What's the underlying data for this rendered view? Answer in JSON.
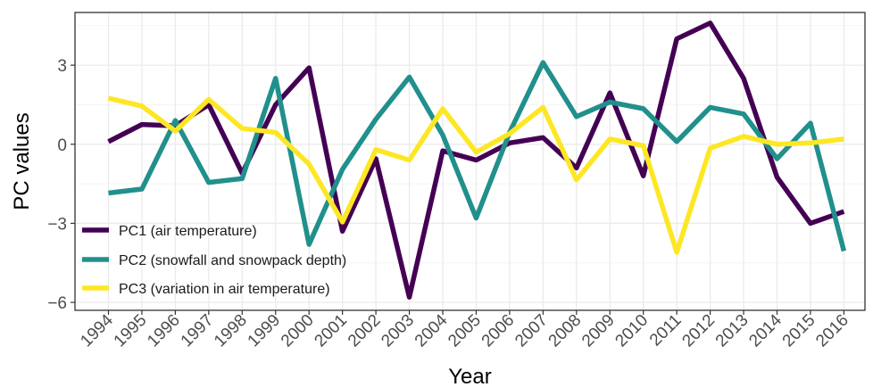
{
  "chart_data": {
    "type": "line",
    "xlabel": "Year",
    "ylabel": "PC values",
    "ylim": [
      -6.3,
      5.0
    ],
    "y_ticks": [
      -6,
      -3,
      0,
      3
    ],
    "y_tick_labels": [
      "−6",
      "−3",
      "0",
      "3"
    ],
    "grid": true,
    "legend_position": "bottom-left",
    "categories": [
      "1994",
      "1995",
      "1996",
      "1997",
      "1998",
      "1999",
      "2000",
      "2001",
      "2002",
      "2003",
      "2004",
      "2005",
      "2006",
      "2007",
      "2008",
      "2009",
      "2010",
      "2011",
      "2012",
      "2013",
      "2014",
      "2015",
      "2016"
    ],
    "series": [
      {
        "name": "PC1 (air temperature)",
        "color": "#440154",
        "values": [
          0.1,
          0.75,
          0.7,
          1.5,
          -1.1,
          1.5,
          2.9,
          -3.3,
          -0.55,
          -5.8,
          -0.25,
          -0.6,
          0.05,
          0.25,
          -0.9,
          1.95,
          -1.2,
          4.0,
          4.6,
          2.5,
          -1.25,
          -3.0,
          -2.55
        ]
      },
      {
        "name": "PC2 (snowfall and snowpack depth)",
        "color": "#21908C",
        "values": [
          -1.85,
          -1.7,
          0.9,
          -1.45,
          -1.3,
          2.5,
          -3.8,
          -0.95,
          0.95,
          2.55,
          0.35,
          -2.8,
          0.45,
          3.1,
          1.05,
          1.6,
          1.35,
          0.1,
          1.4,
          1.15,
          -0.55,
          0.8,
          -4.05
        ]
      },
      {
        "name": "PC3 (variation in air temperature)",
        "color": "#FDE725",
        "values": [
          1.75,
          1.45,
          0.5,
          1.7,
          0.6,
          0.45,
          -0.75,
          -2.95,
          -0.2,
          -0.6,
          1.35,
          -0.3,
          0.4,
          1.4,
          -1.35,
          0.2,
          -0.05,
          -4.1,
          -0.15,
          0.3,
          0.0,
          0.05,
          0.2
        ]
      }
    ]
  }
}
